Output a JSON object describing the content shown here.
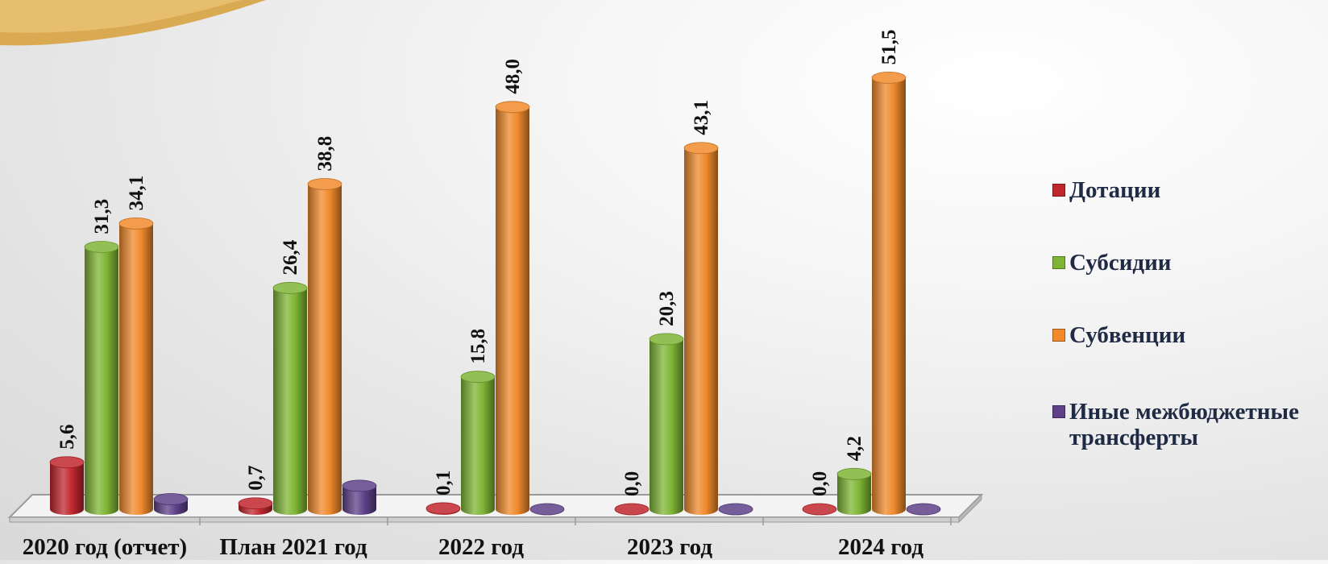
{
  "chart_data": {
    "type": "bar",
    "style": "3d-cylinder",
    "categories": [
      "2020 год (отчет)",
      "План 2021 год",
      "2022 год",
      "2023 год",
      "2024 год"
    ],
    "series": [
      {
        "name": "Дотации",
        "color": "#c0272d",
        "values": [
          5.6,
          0.7,
          0.1,
          0.0,
          0.0
        ],
        "labels": [
          "5,6",
          "0,7",
          "0,1",
          "0,0",
          "0,0"
        ]
      },
      {
        "name": "Субсидии",
        "color": "#7fb536",
        "values": [
          31.3,
          26.4,
          15.8,
          20.3,
          4.2
        ],
        "labels": [
          "31,3",
          "26,4",
          "15,8",
          "20,3",
          "4,2"
        ]
      },
      {
        "name": "Субвенции",
        "color": "#f08a2c",
        "values": [
          34.1,
          38.8,
          48.0,
          43.1,
          51.5
        ],
        "labels": [
          "34,1",
          "38,8",
          "48,0",
          "43,1",
          "51,5"
        ]
      },
      {
        "name": "Иные межбюджетные трансферты",
        "color": "#5e4189",
        "values": [
          1.2,
          2.8,
          0.0,
          0.0,
          0.0
        ],
        "labels": [
          "",
          "",
          "",
          "",
          ""
        ]
      }
    ],
    "ylim": [
      0,
      55
    ],
    "grid": false,
    "legend": "right"
  }
}
